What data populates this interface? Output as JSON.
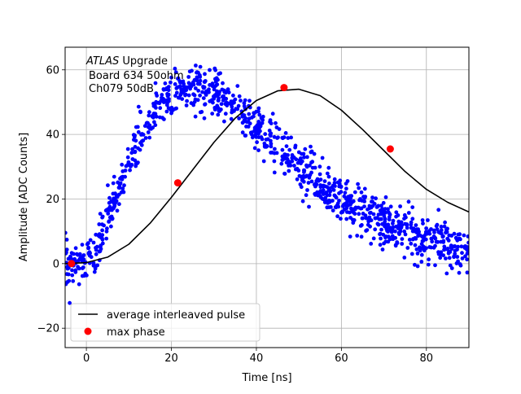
{
  "chart_data": {
    "type": "scatter",
    "title": "",
    "xlabel": "Time [ns]",
    "ylabel": "Amplitude [ADC Counts]",
    "xlim": [
      -5,
      90
    ],
    "ylim": [
      -26,
      67
    ],
    "xticks": [
      0,
      20,
      40,
      60,
      80
    ],
    "yticks": [
      -20,
      0,
      20,
      40,
      60
    ],
    "grid": true,
    "annotation": {
      "experiment": "ATLAS",
      "suffix": " Upgrade",
      "lines": [
        "Board 634 50ohm",
        "Ch079 50dB"
      ]
    },
    "series": [
      {
        "name": "",
        "kind": "samples",
        "color": "#0000ff",
        "pulse_model": {
          "amplitude": 54,
          "onset": -1,
          "width": 26,
          "scatter_sd": 3.5,
          "samples": 1100
        }
      },
      {
        "name": "average interleaved pulse",
        "kind": "line",
        "color": "#000000",
        "points": [
          [
            -5,
            0
          ],
          [
            0,
            0.3
          ],
          [
            5,
            2
          ],
          [
            10,
            6
          ],
          [
            15,
            12.5
          ],
          [
            20,
            20.5
          ],
          [
            25,
            29
          ],
          [
            30,
            37.5
          ],
          [
            35,
            45
          ],
          [
            40,
            50.5
          ],
          [
            45,
            53.5
          ],
          [
            50,
            54
          ],
          [
            55,
            52
          ],
          [
            60,
            47.5
          ],
          [
            65,
            41.5
          ],
          [
            70,
            35
          ],
          [
            75,
            28.5
          ],
          [
            80,
            23
          ],
          [
            85,
            19
          ],
          [
            90,
            16
          ]
        ]
      },
      {
        "name": "max phase",
        "kind": "markers",
        "color": "#ff0000",
        "points": [
          [
            -3.5,
            0
          ],
          [
            21.5,
            25
          ],
          [
            46.5,
            54.5
          ],
          [
            71.5,
            35.5
          ]
        ]
      }
    ],
    "legend": {
      "position": "bottom-left",
      "entries": [
        "average interleaved pulse",
        "max phase"
      ]
    }
  }
}
